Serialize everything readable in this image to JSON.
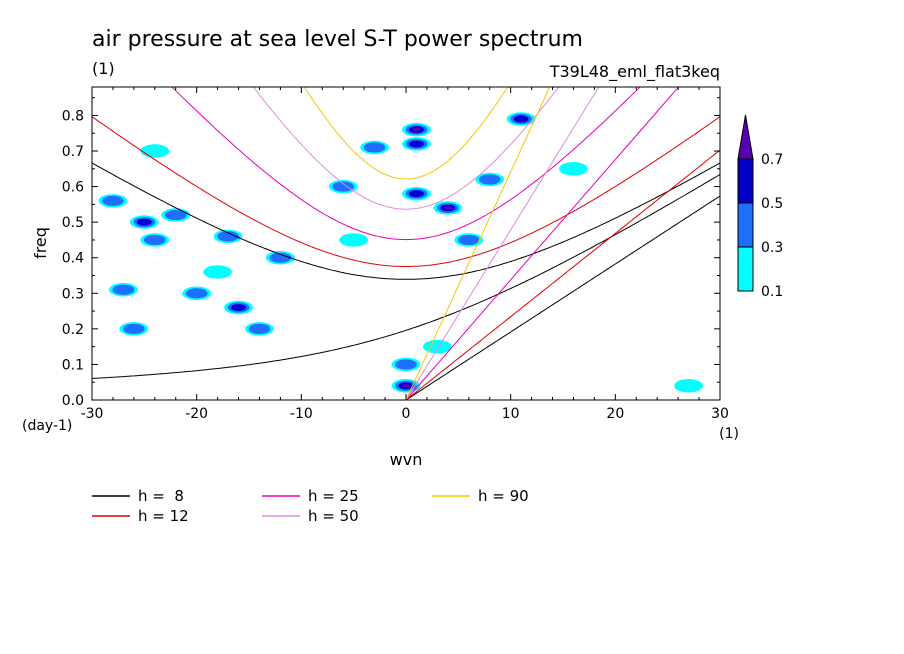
{
  "figure": {
    "title": "air pressure at sea level S-T power spectrum",
    "units_label": "(1)",
    "experiment": "T39L48_eml_flat3keq"
  },
  "chart_data": {
    "type": "heatmap",
    "title": "air pressure at sea level S-T power spectrum",
    "xlabel": "wvn",
    "ylabel": "freq",
    "x_unit_label": "(1)",
    "y_unit_label": "(day-1)",
    "xlim": [
      -30,
      30
    ],
    "ylim": [
      0,
      0.88
    ],
    "x_ticks": [
      -30,
      -20,
      -10,
      0,
      10,
      20,
      30
    ],
    "x_tick_labels": [
      "-30",
      "-20",
      "-10",
      "0",
      "10",
      "20",
      "30"
    ],
    "y_ticks": [
      0,
      0.1,
      0.2,
      0.3,
      0.4,
      0.5,
      0.6,
      0.7,
      0.8
    ],
    "y_tick_labels": [
      "0.0",
      "0.1",
      "0.2",
      "0.3",
      "0.4",
      "0.5",
      "0.6",
      "0.7",
      "0.8"
    ],
    "colorbar": {
      "levels": [
        0.1,
        0.3,
        0.5,
        0.7
      ],
      "labels": [
        "0.1",
        "0.3",
        "0.5",
        "0.7"
      ],
      "colors": [
        "#00ffff",
        "#1e6eff",
        "#0000c8",
        "#5a00b4"
      ],
      "extend": "max"
    },
    "legend": [
      {
        "label": "h =  8",
        "color": "#000000"
      },
      {
        "label": "h = 12",
        "color": "#e10000"
      },
      {
        "label": "h = 25",
        "color": "#e600b4"
      },
      {
        "label": "h = 50",
        "color": "#dc8cdc"
      },
      {
        "label": "h = 90",
        "color": "#f0c800"
      }
    ],
    "dispersion_series": [
      {
        "name": "h =  8",
        "kind": "kelvin",
        "h": 8,
        "color": "#000000"
      },
      {
        "name": "h =  8",
        "kind": "rossby_gravity",
        "h": 8,
        "color": "#000000"
      },
      {
        "name": "h =  8",
        "kind": "inertia_gravity_n1",
        "h": 8,
        "color": "#000000"
      },
      {
        "name": "h = 12",
        "kind": "kelvin",
        "h": 12,
        "color": "#e10000"
      },
      {
        "name": "h = 12",
        "kind": "inertia_gravity_n1",
        "h": 12,
        "color": "#e10000"
      },
      {
        "name": "h = 25",
        "kind": "kelvin",
        "h": 25,
        "color": "#e600b4"
      },
      {
        "name": "h = 25",
        "kind": "inertia_gravity_n1",
        "h": 25,
        "color": "#e600b4"
      },
      {
        "name": "h = 50",
        "kind": "kelvin",
        "h": 50,
        "color": "#dc8cdc"
      },
      {
        "name": "h = 50",
        "kind": "inertia_gravity_n1",
        "h": 50,
        "color": "#dc8cdc"
      },
      {
        "name": "h = 90",
        "kind": "kelvin",
        "h": 90,
        "color": "#f0c800"
      },
      {
        "name": "h = 90",
        "kind": "inertia_gravity_n1",
        "h": 90,
        "color": "#f0c800"
      }
    ],
    "power_patches": [
      {
        "wvn": 1,
        "freq": 0.76,
        "level": 0.7
      },
      {
        "wvn": 1,
        "freq": 0.72,
        "level": 0.5
      },
      {
        "wvn": 0,
        "freq": 0.04,
        "level": 0.7
      },
      {
        "wvn": 0,
        "freq": 0.1,
        "level": 0.3
      },
      {
        "wvn": 4,
        "freq": 0.54,
        "level": 0.7
      },
      {
        "wvn": 1,
        "freq": 0.58,
        "level": 0.5
      },
      {
        "wvn": -16,
        "freq": 0.26,
        "level": 0.5
      },
      {
        "wvn": -25,
        "freq": 0.5,
        "level": 0.5
      },
      {
        "wvn": -28,
        "freq": 0.56,
        "level": 0.3
      },
      {
        "wvn": -22,
        "freq": 0.52,
        "level": 0.3
      },
      {
        "wvn": -17,
        "freq": 0.46,
        "level": 0.3
      },
      {
        "wvn": -20,
        "freq": 0.3,
        "level": 0.3
      },
      {
        "wvn": -27,
        "freq": 0.31,
        "level": 0.3
      },
      {
        "wvn": -6,
        "freq": 0.6,
        "level": 0.3
      },
      {
        "wvn": 11,
        "freq": 0.79,
        "level": 0.5
      },
      {
        "wvn": 8,
        "freq": 0.62,
        "level": 0.3
      },
      {
        "wvn": -12,
        "freq": 0.4,
        "level": 0.3
      },
      {
        "wvn": 6,
        "freq": 0.45,
        "level": 0.3
      },
      {
        "wvn": -24,
        "freq": 0.45,
        "level": 0.3
      },
      {
        "wvn": -3,
        "freq": 0.71,
        "level": 0.3
      },
      {
        "wvn": -26,
        "freq": 0.2,
        "level": 0.3
      },
      {
        "wvn": -14,
        "freq": 0.2,
        "level": 0.3
      },
      {
        "wvn": 27,
        "freq": 0.04,
        "level": 0.1
      },
      {
        "wvn": -24,
        "freq": 0.7,
        "level": 0.1
      },
      {
        "wvn": -5,
        "freq": 0.45,
        "level": 0.1
      },
      {
        "wvn": 3,
        "freq": 0.15,
        "level": 0.1
      },
      {
        "wvn": 16,
        "freq": 0.65,
        "level": 0.1
      },
      {
        "wvn": -18,
        "freq": 0.36,
        "level": 0.1
      }
    ]
  }
}
